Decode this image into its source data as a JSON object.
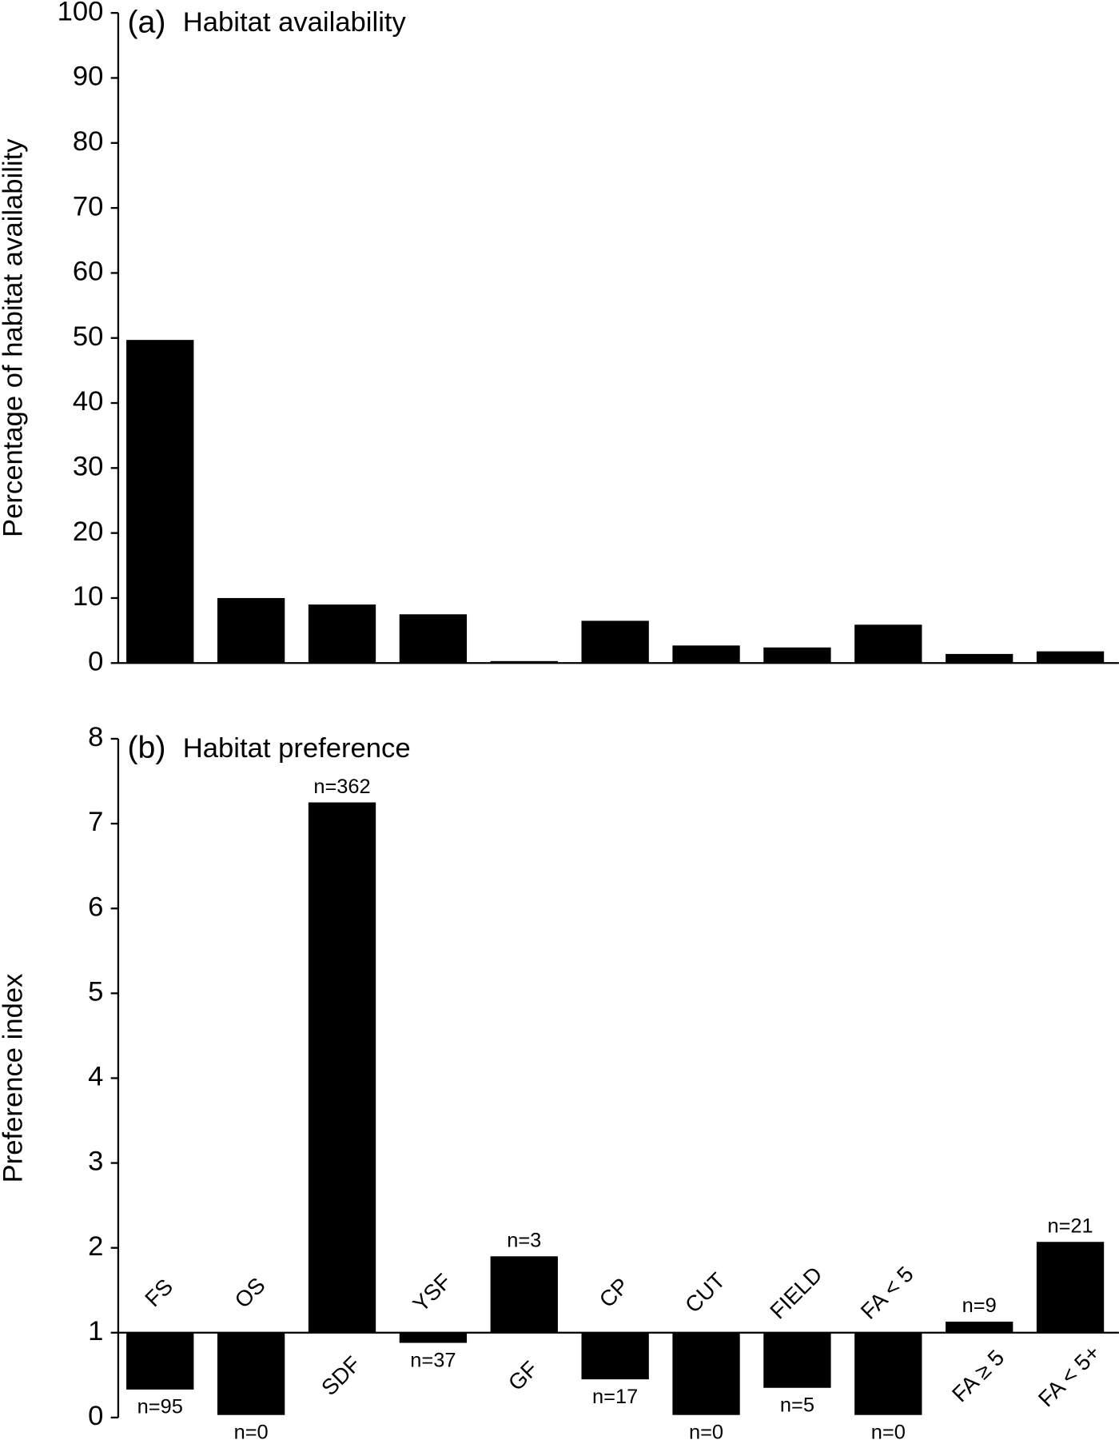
{
  "chart_data": [
    {
      "type": "bar",
      "panel_label": "(a)",
      "title": "Habitat availability",
      "y_label": "Percentage of habitat availability",
      "categories": [
        null,
        null,
        null,
        null,
        null,
        null,
        null,
        null,
        null,
        null,
        null
      ],
      "values": [
        49.7,
        10,
        9,
        7.5,
        0.3,
        6.5,
        2.7,
        2.4,
        5.9,
        1.4,
        1.8
      ],
      "color": "#000000",
      "ylim": [
        0,
        100
      ],
      "yticks": [
        0,
        10,
        20,
        30,
        40,
        50,
        60,
        70,
        80,
        90,
        100
      ],
      "grid": false
    },
    {
      "type": "bar",
      "panel_label": "(b)",
      "title": "Habitat preference",
      "y_label": "Preference index",
      "categories": [
        "FS",
        "OS",
        "SDF",
        "YSF",
        "GF",
        "CP",
        "CUT",
        "FIELD",
        "FA < 5",
        "FA ≥ 5",
        "FA < 5+"
      ],
      "values": [
        0.33,
        0.03,
        7.25,
        0.88,
        1.9,
        0.45,
        0.03,
        0.35,
        0.03,
        1.13,
        2.07
      ],
      "annotations": [
        "n=95",
        "n=0",
        "n=362",
        "n=37",
        "n=3",
        "n=17",
        "n=0",
        "n=5",
        "n=0",
        "n=9",
        "n=21"
      ],
      "baseline": 1,
      "color": "#000000",
      "ylim": [
        0,
        8
      ],
      "yticks": [
        0,
        1,
        2,
        3,
        4,
        5,
        6,
        7,
        8
      ],
      "grid": false
    }
  ]
}
